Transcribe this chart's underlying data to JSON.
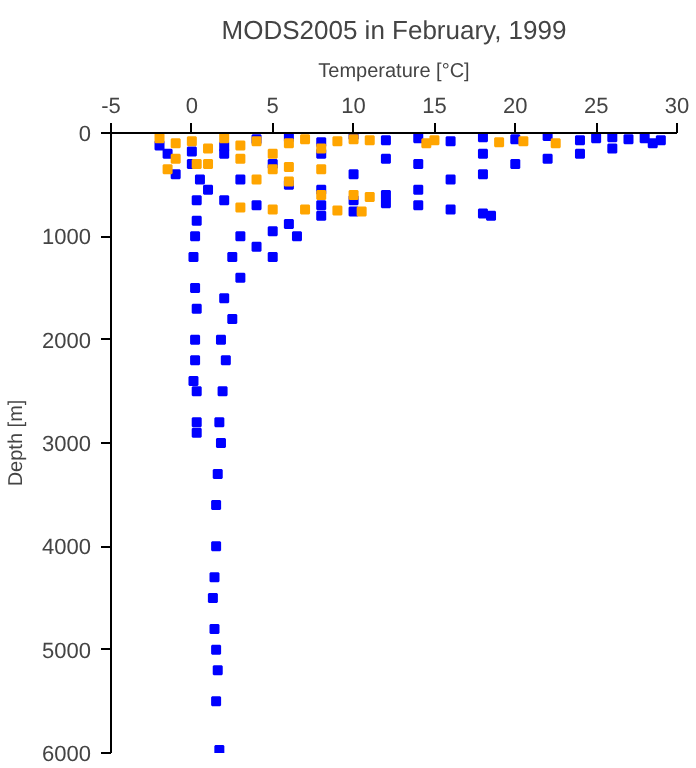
{
  "chart_data": {
    "type": "scatter",
    "title": "MODS2005 in February, 1999",
    "xlabel": "Temperature [°C]",
    "ylabel": "Depth [m]",
    "xlim": [
      -5,
      30
    ],
    "xticks": [
      -5,
      0,
      5,
      10,
      15,
      20,
      25,
      30
    ],
    "ylim": [
      6000,
      0
    ],
    "yticks": [
      0,
      1000,
      2000,
      3000,
      4000,
      5000,
      6000
    ],
    "grid": false,
    "marker": "square",
    "series": [
      {
        "color": "#0000ff",
        "x": [
          -2,
          0,
          2,
          4,
          6,
          8,
          10,
          12,
          14,
          16,
          18,
          20,
          22,
          24,
          25,
          26,
          27,
          28,
          29,
          28.5,
          26,
          24,
          22,
          20,
          18,
          16,
          14,
          12,
          10,
          -1.5,
          0,
          2,
          5,
          8,
          10,
          14,
          18,
          12,
          6,
          3,
          8,
          -1,
          0.5,
          1,
          4,
          8,
          2,
          12,
          14,
          16,
          18,
          18.5,
          10,
          8,
          6,
          5,
          3,
          6.5,
          4,
          2.5,
          5,
          3,
          2,
          2.5,
          1.8,
          2.1,
          1.9,
          1.7,
          1.8,
          1.6,
          1.5,
          1.5,
          1.4,
          1.3,
          1.4,
          1.5,
          1.6,
          1.5,
          1.7,
          0.3,
          0.3,
          0.2,
          0.1,
          0.2,
          0.3,
          0.2,
          0.2,
          0.1,
          0.3,
          0.3,
          0.3
        ],
        "values": [
          120,
          180,
          130,
          60,
          40,
          90,
          20,
          70,
          50,
          80,
          40,
          60,
          30,
          70,
          50,
          40,
          60,
          50,
          70,
          100,
          150,
          200,
          250,
          300,
          400,
          450,
          550,
          600,
          650,
          200,
          300,
          200,
          300,
          200,
          400,
          300,
          200,
          250,
          500,
          450,
          550,
          400,
          450,
          550,
          700,
          700,
          650,
          680,
          700,
          740,
          780,
          800,
          760,
          800,
          880,
          950,
          1000,
          1000,
          1100,
          1200,
          1200,
          1400,
          1600,
          1800,
          2000,
          2200,
          2500,
          2800,
          3000,
          3300,
          3600,
          4000,
          4300,
          4500,
          4800,
          5000,
          5200,
          5500,
          5970,
          650,
          850,
          1000,
          1200,
          1500,
          1700,
          2000,
          2200,
          2400,
          2500,
          2800,
          2900
        ]
      },
      {
        "color": "#ffa500",
        "x": [
          -2,
          -1,
          0,
          1,
          2,
          3,
          4,
          5,
          6,
          7,
          8,
          9,
          10,
          11,
          14.5,
          15,
          19,
          20.5,
          22.5,
          -1,
          1,
          3,
          5,
          6,
          8,
          4,
          6,
          -1.5,
          8,
          10,
          11,
          3,
          5,
          7,
          9,
          10.5,
          0.3
        ],
        "values": [
          50,
          100,
          80,
          150,
          50,
          120,
          80,
          200,
          100,
          60,
          150,
          80,
          60,
          70,
          100,
          70,
          90,
          80,
          100,
          250,
          300,
          250,
          350,
          330,
          350,
          450,
          470,
          350,
          600,
          600,
          620,
          720,
          740,
          740,
          750,
          760,
          300
        ]
      }
    ]
  }
}
